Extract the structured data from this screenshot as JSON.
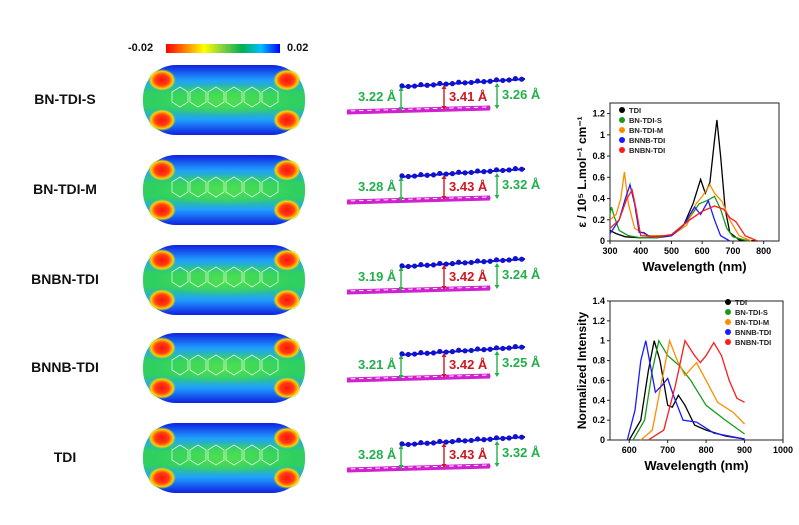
{
  "colorbar": {
    "min_label": "-0.02",
    "max_label": "0.02",
    "colors": [
      "#ff0000",
      "#ffff00",
      "#00c040",
      "#00c0ff",
      "#0000ff"
    ]
  },
  "molecules": [
    {
      "name": "BN-TDI-S",
      "left_distance": "3.22 Å",
      "center_distance": "3.41 Å",
      "right_distance": "3.26 Å"
    },
    {
      "name": "BN-TDI-M",
      "left_distance": "3.28 Å",
      "center_distance": "3.43 Å",
      "right_distance": "3.32 Å"
    },
    {
      "name": "BNBN-TDI",
      "left_distance": "3.19 Å",
      "center_distance": "3.42 Å",
      "right_distance": "3.24 Å"
    },
    {
      "name": "BNNB-TDI",
      "left_distance": "3.21 Å",
      "center_distance": "3.42 Å",
      "right_distance": "3.25 Å"
    },
    {
      "name": "TDI",
      "left_distance": "3.28 Å",
      "center_distance": "3.43 Å",
      "right_distance": "3.32 Å"
    }
  ],
  "colors": {
    "green_distance": "#22b04a",
    "red_distance": "#d0161e",
    "top_layer": "#1010d0",
    "bottom_layer": "#d020d0"
  },
  "chart_data": [
    {
      "type": "line",
      "xlabel": "Wavelength (nm)",
      "ylabel": "ε / 10⁵ L.mol⁻¹ cm⁻¹",
      "xlim": [
        300,
        850
      ],
      "ylim": [
        0,
        1.3
      ],
      "xticks": [
        300,
        400,
        500,
        600,
        700,
        800
      ],
      "yticks": [
        0,
        0.2,
        0.4,
        0.6,
        0.8,
        1,
        1.2
      ],
      "legend_placement": "top-left",
      "series": [
        {
          "name": "TDI",
          "color": "#000000",
          "points": [
            [
              300,
              0.1
            ],
            [
              320,
              0.07
            ],
            [
              350,
              0.04
            ],
            [
              400,
              0.03
            ],
            [
              450,
              0.03
            ],
            [
              500,
              0.05
            ],
            [
              540,
              0.15
            ],
            [
              570,
              0.35
            ],
            [
              595,
              0.58
            ],
            [
              610,
              0.45
            ],
            [
              625,
              0.55
            ],
            [
              640,
              0.95
            ],
            [
              648,
              1.14
            ],
            [
              660,
              0.8
            ],
            [
              675,
              0.3
            ],
            [
              690,
              0.08
            ],
            [
              720,
              0.01
            ],
            [
              780,
              0
            ]
          ]
        },
        {
          "name": "BN-TDI-S",
          "color": "#1a9a1a",
          "points": [
            [
              300,
              0.25
            ],
            [
              305,
              0.32
            ],
            [
              315,
              0.22
            ],
            [
              330,
              0.1
            ],
            [
              360,
              0.05
            ],
            [
              400,
              0.03
            ],
            [
              450,
              0.03
            ],
            [
              500,
              0.06
            ],
            [
              550,
              0.18
            ],
            [
              590,
              0.35
            ],
            [
              615,
              0.38
            ],
            [
              640,
              0.42
            ],
            [
              660,
              0.3
            ],
            [
              680,
              0.12
            ],
            [
              700,
              0.04
            ],
            [
              750,
              0
            ]
          ]
        },
        {
          "name": "BN-TDI-M",
          "color": "#ff8c00",
          "points": [
            [
              300,
              0.2
            ],
            [
              320,
              0.25
            ],
            [
              335,
              0.4
            ],
            [
              347,
              0.65
            ],
            [
              360,
              0.35
            ],
            [
              380,
              0.12
            ],
            [
              420,
              0.05
            ],
            [
              500,
              0.05
            ],
            [
              550,
              0.15
            ],
            [
              580,
              0.35
            ],
            [
              600,
              0.42
            ],
            [
              625,
              0.53
            ],
            [
              640,
              0.45
            ],
            [
              665,
              0.37
            ],
            [
              690,
              0.2
            ],
            [
              720,
              0.05
            ],
            [
              760,
              0
            ]
          ]
        },
        {
          "name": "BNNB-TDI",
          "color": "#1a1aff",
          "points": [
            [
              300,
              0.07
            ],
            [
              330,
              0.2
            ],
            [
              350,
              0.4
            ],
            [
              365,
              0.53
            ],
            [
              380,
              0.35
            ],
            [
              395,
              0.08
            ],
            [
              410,
              0.08
            ],
            [
              430,
              0.04
            ],
            [
              500,
              0.05
            ],
            [
              540,
              0.15
            ],
            [
              575,
              0.32
            ],
            [
              595,
              0.25
            ],
            [
              620,
              0.38
            ],
            [
              640,
              0.2
            ],
            [
              660,
              0.05
            ],
            [
              690,
              0
            ]
          ]
        },
        {
          "name": "BNBN-TDI",
          "color": "#ff1a1a",
          "points": [
            [
              300,
              0.12
            ],
            [
              330,
              0.2
            ],
            [
              355,
              0.4
            ],
            [
              372,
              0.48
            ],
            [
              385,
              0.3
            ],
            [
              400,
              0.05
            ],
            [
              450,
              0.04
            ],
            [
              500,
              0.06
            ],
            [
              560,
              0.2
            ],
            [
              600,
              0.28
            ],
            [
              640,
              0.33
            ],
            [
              670,
              0.3
            ],
            [
              690,
              0.22
            ],
            [
              710,
              0.18
            ],
            [
              740,
              0.05
            ],
            [
              780,
              0
            ]
          ]
        }
      ]
    },
    {
      "type": "line",
      "xlabel": "Wavelength (nm)",
      "ylabel": "Normalized Intensity",
      "xlim": [
        550,
        1000
      ],
      "ylim": [
        0,
        1.4
      ],
      "xticks": [
        600,
        700,
        800,
        900,
        1000
      ],
      "yticks": [
        0,
        0.2,
        0.4,
        0.6,
        0.8,
        1,
        1.2,
        1.4
      ],
      "legend_placement": "top-right",
      "series": [
        {
          "name": "TDI",
          "color": "#000000",
          "points": [
            [
              600,
              0
            ],
            [
              630,
              0.2
            ],
            [
              650,
              0.7
            ],
            [
              665,
              1.0
            ],
            [
              680,
              0.8
            ],
            [
              700,
              0.35
            ],
            [
              712,
              0.33
            ],
            [
              728,
              0.45
            ],
            [
              745,
              0.35
            ],
            [
              770,
              0.15
            ],
            [
              800,
              0.1
            ],
            [
              850,
              0.04
            ],
            [
              900,
              0.01
            ]
          ]
        },
        {
          "name": "BN-TDI-S",
          "color": "#1a9a1a",
          "points": [
            [
              610,
              0
            ],
            [
              640,
              0.2
            ],
            [
              660,
              0.7
            ],
            [
              677,
              1.0
            ],
            [
              700,
              0.85
            ],
            [
              730,
              0.75
            ],
            [
              760,
              0.6
            ],
            [
              800,
              0.35
            ],
            [
              850,
              0.2
            ],
            [
              900,
              0.06
            ]
          ]
        },
        {
          "name": "BN-TDI-M",
          "color": "#ff8c00",
          "points": [
            [
              630,
              0
            ],
            [
              660,
              0.1
            ],
            [
              680,
              0.5
            ],
            [
              705,
              1.0
            ],
            [
              725,
              0.8
            ],
            [
              745,
              0.65
            ],
            [
              775,
              0.78
            ],
            [
              800,
              0.6
            ],
            [
              830,
              0.38
            ],
            [
              870,
              0.28
            ],
            [
              900,
              0.16
            ]
          ]
        },
        {
          "name": "BNNB-TDI",
          "color": "#1a1aff",
          "points": [
            [
              595,
              0
            ],
            [
              615,
              0.3
            ],
            [
              630,
              0.8
            ],
            [
              643,
              1.0
            ],
            [
              655,
              0.75
            ],
            [
              668,
              0.48
            ],
            [
              685,
              0.55
            ],
            [
              700,
              0.62
            ],
            [
              715,
              0.45
            ],
            [
              740,
              0.2
            ],
            [
              775,
              0.18
            ],
            [
              820,
              0.07
            ],
            [
              900,
              0.01
            ]
          ]
        },
        {
          "name": "BNBN-TDI",
          "color": "#ff1a1a",
          "points": [
            [
              650,
              0
            ],
            [
              690,
              0.1
            ],
            [
              720,
              0.55
            ],
            [
              745,
              1.0
            ],
            [
              770,
              0.85
            ],
            [
              785,
              0.78
            ],
            [
              800,
              0.85
            ],
            [
              820,
              0.98
            ],
            [
              840,
              0.85
            ],
            [
              860,
              0.6
            ],
            [
              880,
              0.42
            ],
            [
              900,
              0.38
            ]
          ]
        }
      ]
    }
  ]
}
